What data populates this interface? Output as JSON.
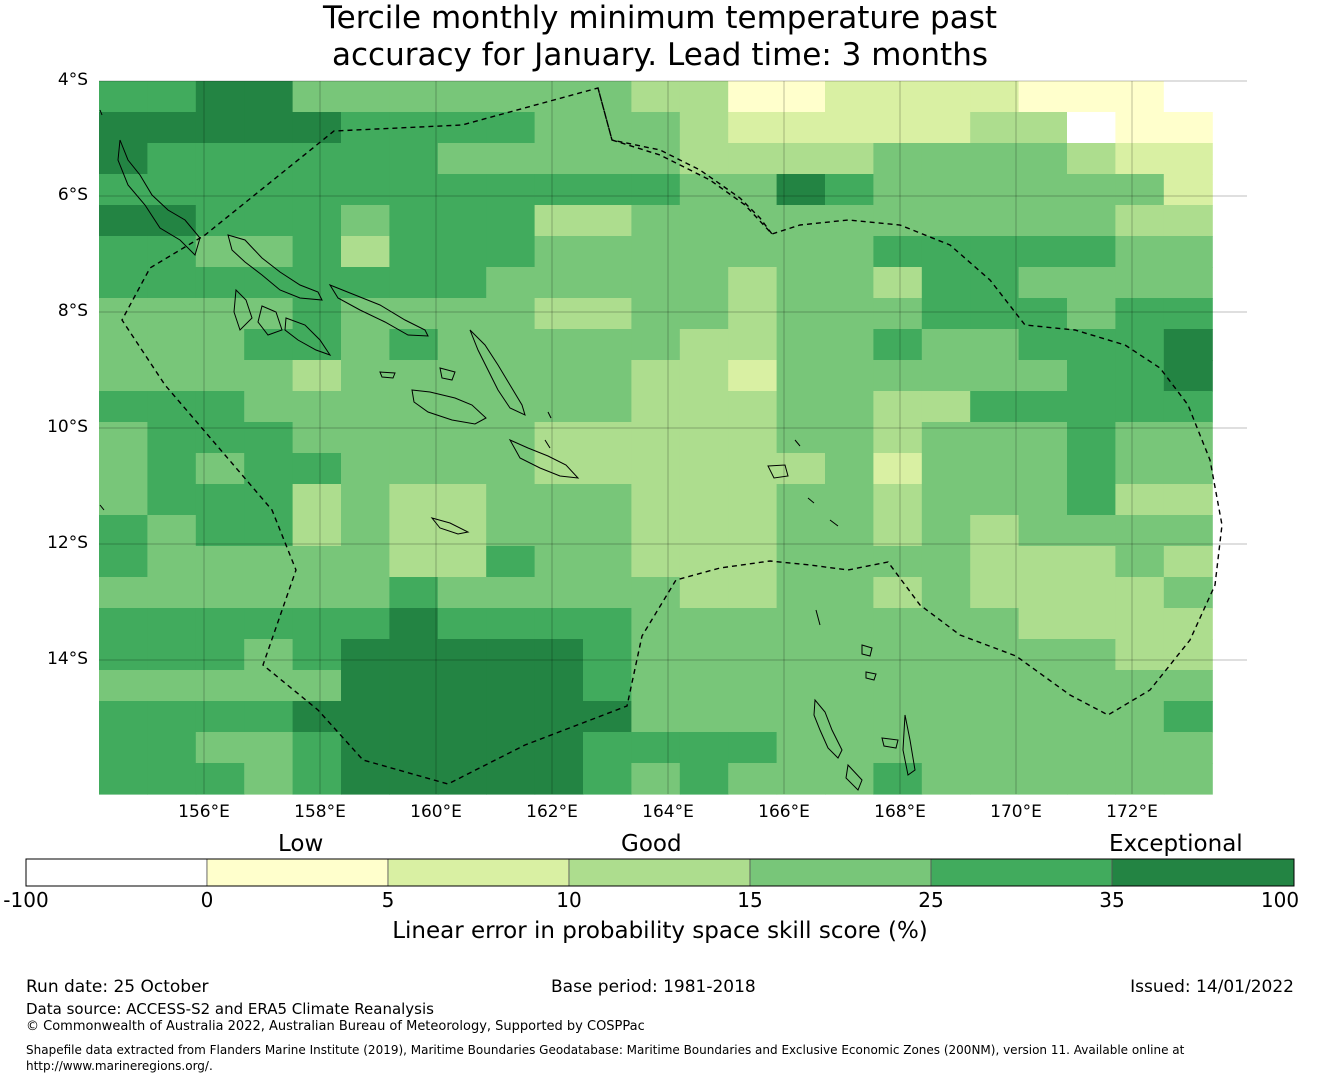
{
  "title": {
    "line1": "Tercile monthly minimum temperature past",
    "line2": "accuracy for January. Lead time: 3 months"
  },
  "map": {
    "lat_labels": [
      "4°S",
      "6°S",
      "8°S",
      "10°S",
      "12°S",
      "14°S"
    ],
    "lon_labels": [
      "156°E",
      "158°E",
      "160°E",
      "162°E",
      "164°E",
      "166°E",
      "168°E",
      "170°E",
      "172°E"
    ],
    "grid_rows": [
      "55664444444331122221110",
      "66666555544432222233011",
      "65555554444433334444322",
      "55555555555544654444442",
      "66555455533444444444433",
      "55445355544444445555544",
      "55555555444443443554444",
      "44445444433443444555455",
      "44455454444433445445556",
      "44443444444332444444556",
      "55544444444333443355555",
      "45554444433333443444544",
      "45455444433333342444544",
      "45553433444333443444533",
      "54553433444333443434444",
      "54444433544333444433343",
      "44444454444433443433334",
      "55555565555444444443333",
      "55545666665444444444433",
      "44444666665444444444444",
      "55556666666444444444445",
      "55445666665555444444444",
      "55545666665454445444444"
    ],
    "colors": [
      "#ffffff",
      "#ffffcc",
      "#d9f0a3",
      "#addd8e",
      "#78c679",
      "#41ab5d",
      "#238443"
    ]
  },
  "colorbar": {
    "category_low": "Low",
    "category_good": "Good",
    "category_exceptional": "Exceptional",
    "ticks": [
      "-100",
      "0",
      "5",
      "10",
      "15",
      "25",
      "35",
      "100"
    ],
    "title": "Linear error in probability space skill score (%)"
  },
  "footer": {
    "run_date": "Run date: 25 October",
    "base_period": "Base period: 1981-2018",
    "issued": "Issued: 14/01/2022",
    "data_source": "Data source: ACCESS-S2 and ERA5 Climate Reanalysis",
    "copyright": "© Commonwealth of Australia 2022, Australian Bureau of Meteorology, Supported by COSPPac",
    "shapefile_line1": "Shapefile data extracted from Flanders Marine Institute (2019), Maritime Boundaries Geodatabase: Maritime Boundaries and Exclusive Economic Zones (200NM), version 11. Available online at",
    "shapefile_line2": "http://www.marineregions.org/."
  }
}
